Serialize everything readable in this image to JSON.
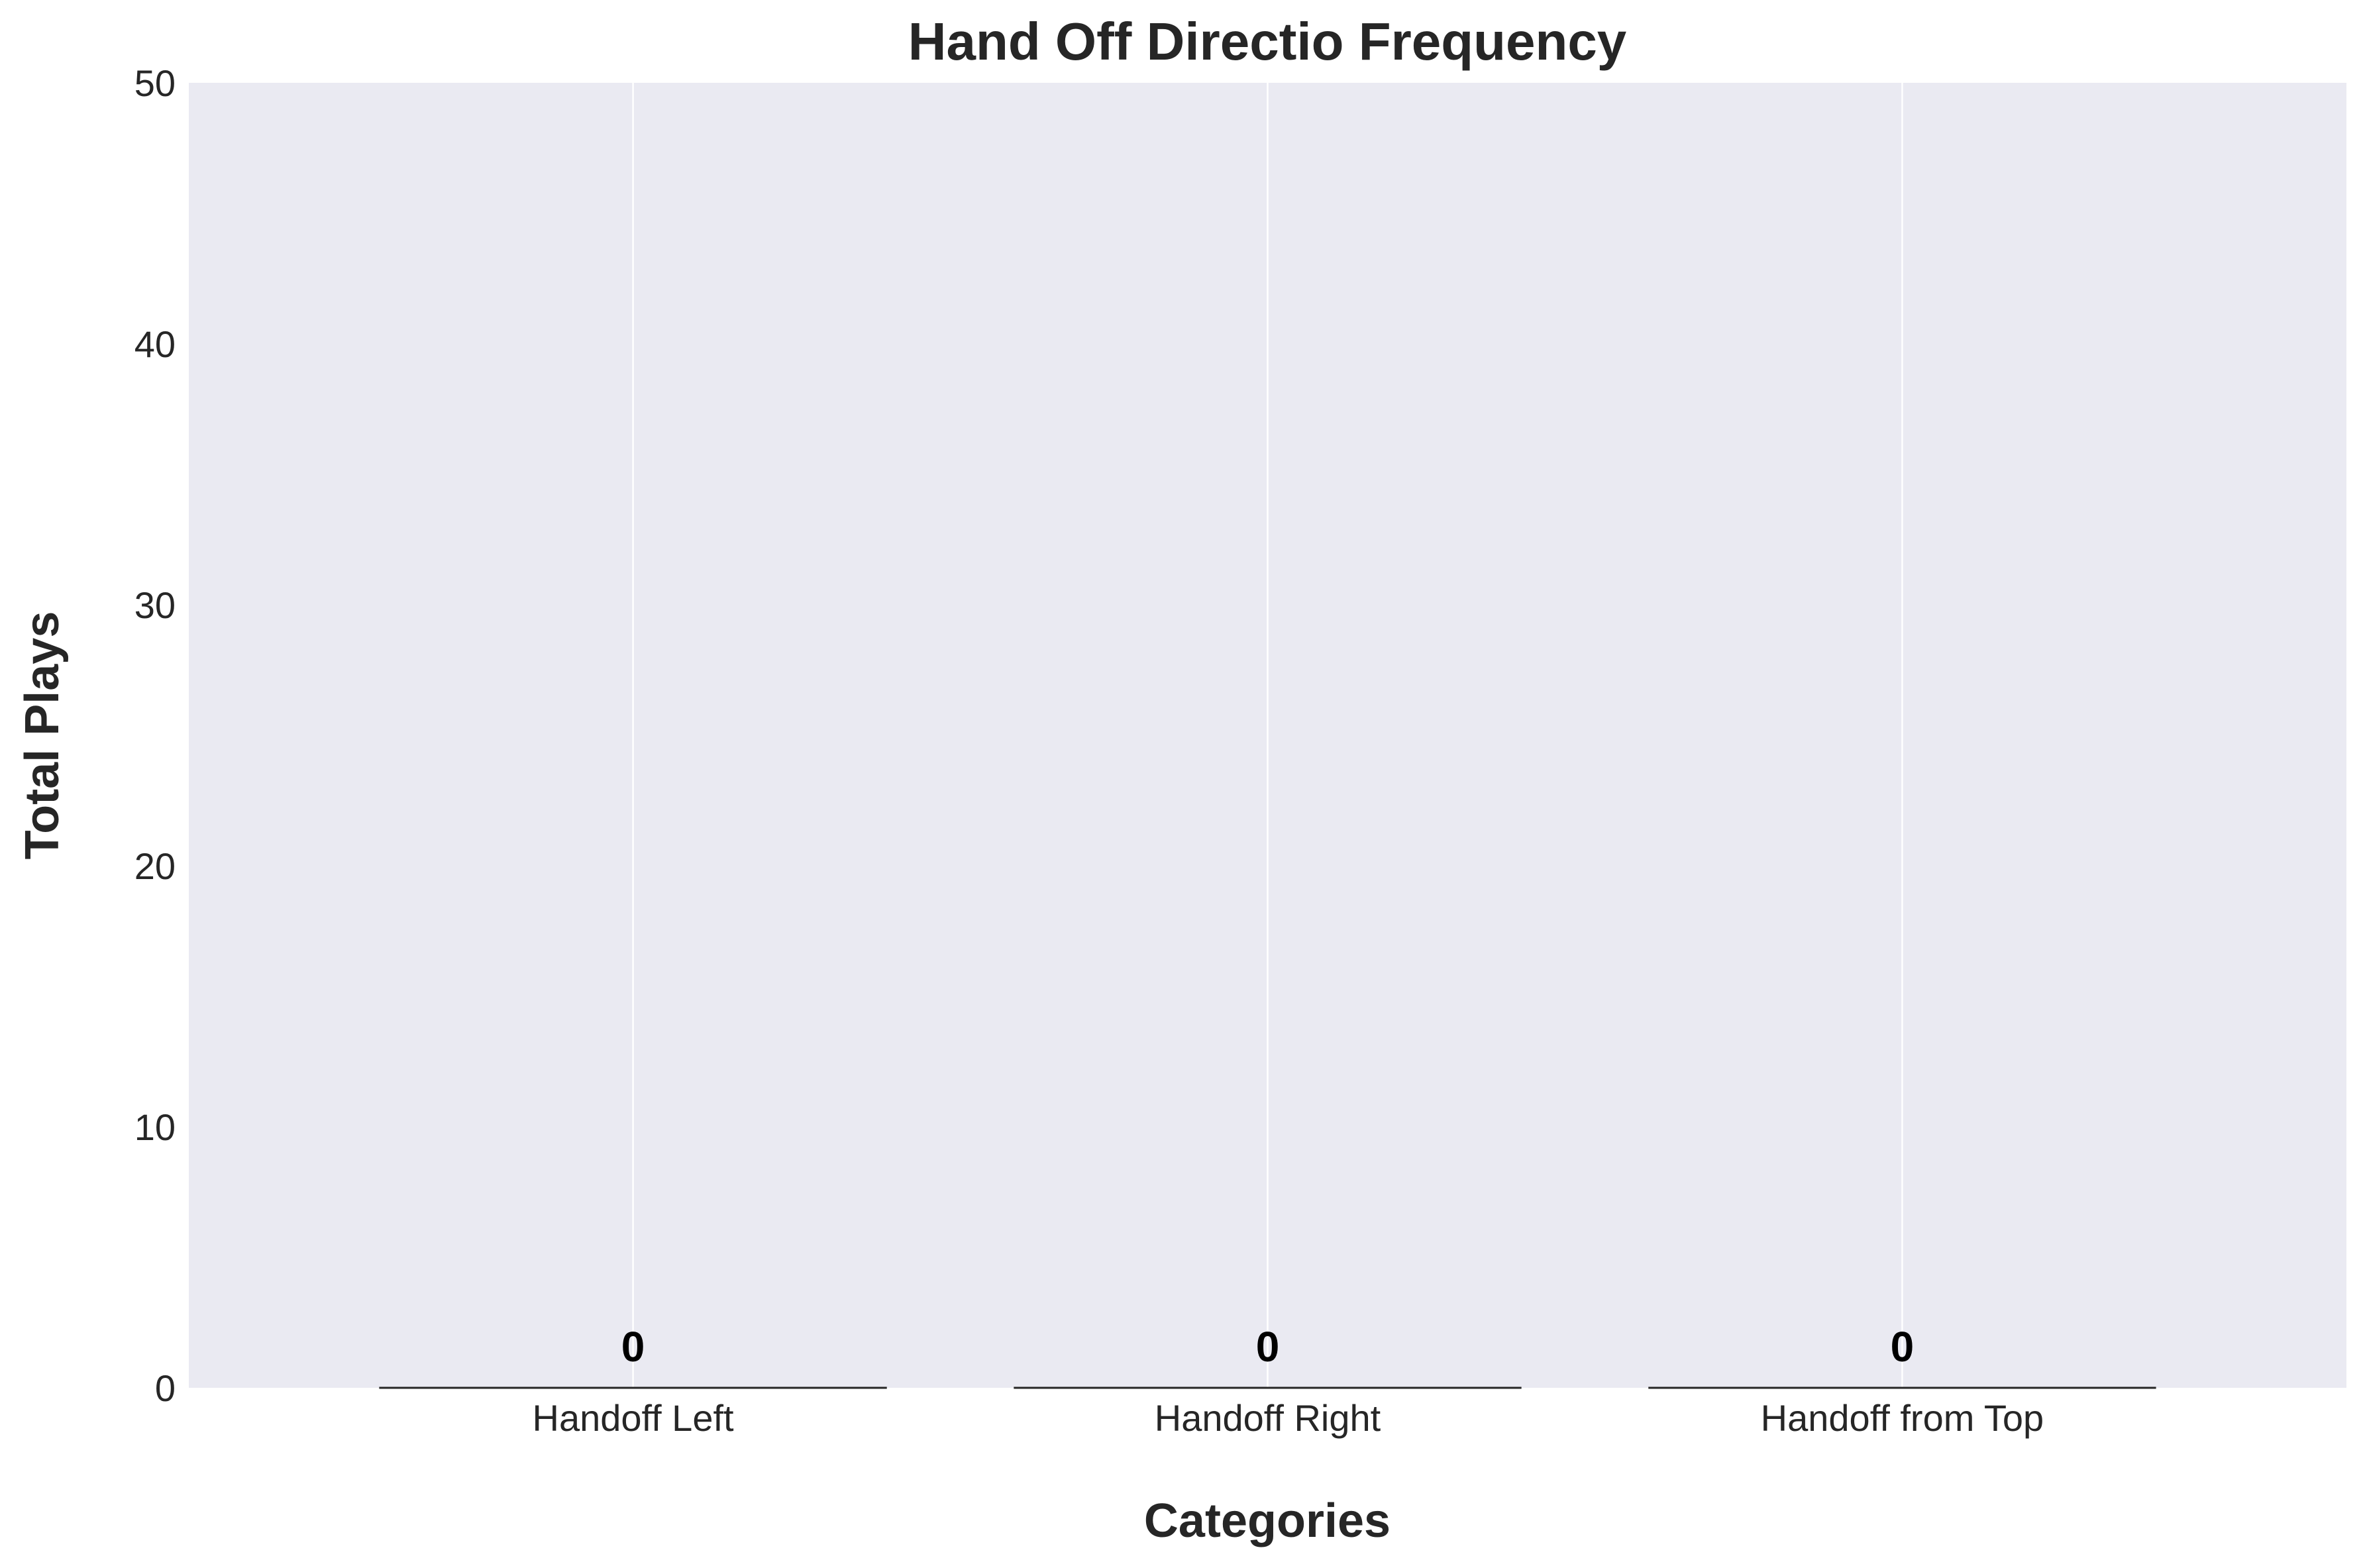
{
  "chart_data": {
    "type": "bar",
    "title": "Hand Off Directio Frequency",
    "xlabel": "Categories",
    "ylabel": "Total Plays",
    "categories": [
      "Handoff Left",
      "Handoff Right",
      "Handoff from Top"
    ],
    "values": [
      0,
      0,
      0
    ],
    "value_labels": [
      "0",
      "0",
      "0"
    ],
    "ylim": [
      0,
      50
    ],
    "yticks": [
      0,
      10,
      20,
      30,
      40,
      50
    ],
    "ytick_labels": [
      "0",
      "10",
      "20",
      "30",
      "40",
      "50"
    ],
    "grid": "vertical",
    "colors": {
      "plot_background": "#eaeaf2",
      "grid": "#ffffff",
      "bar_edge": "#262626",
      "text": "#262626",
      "data_label": "#000000"
    }
  }
}
